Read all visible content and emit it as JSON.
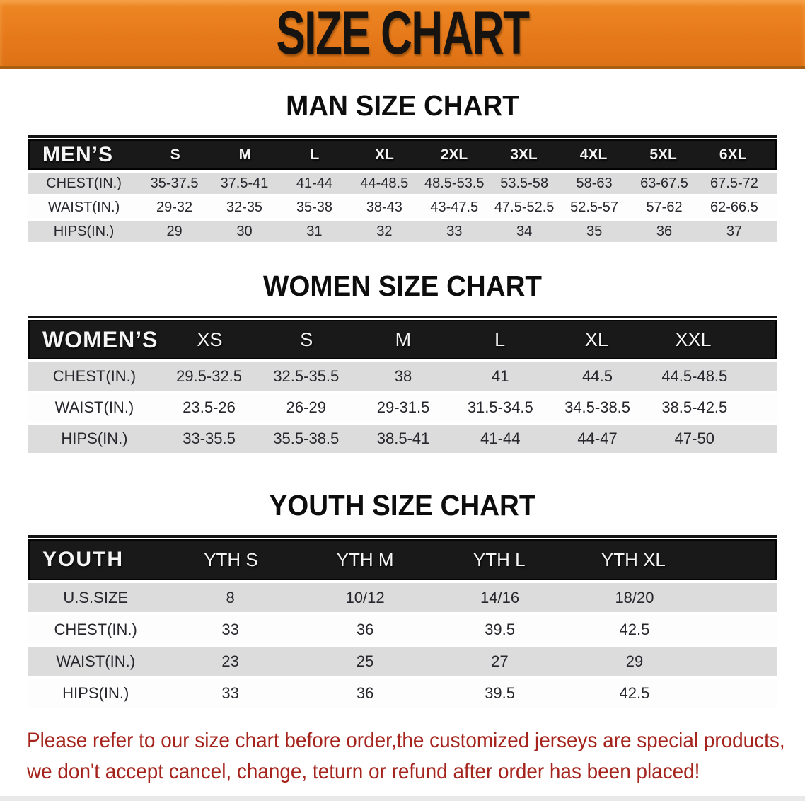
{
  "banner": {
    "title": "SIZE CHART",
    "background": "#e67a1b",
    "text_color": "#171310"
  },
  "sections": [
    {
      "heading": "MAN SIZE CHART",
      "table": {
        "header": {
          "label": "MEN’S",
          "sizes": [
            "S",
            "M",
            "L",
            "XL",
            "2XL",
            "3XL",
            "4XL",
            "5XL",
            "6XL"
          ]
        },
        "rows": [
          {
            "label": "CHEST(IN.)",
            "values": [
              "35-37.5",
              "37.5-41",
              "41-44",
              "44-48.5",
              "48.5-53.5",
              "53.5-58",
              "58-63",
              "63-67.5",
              "67.5-72"
            ]
          },
          {
            "label": "WAIST(IN.)",
            "values": [
              "29-32",
              "32-35",
              "35-38",
              "38-43",
              "43-47.5",
              "47.5-52.5",
              "52.5-57",
              "57-62",
              "62-66.5"
            ]
          },
          {
            "label": "HIPS(IN.)",
            "values": [
              "29",
              "30",
              "31",
              "32",
              "33",
              "34",
              "35",
              "36",
              "37"
            ]
          }
        ]
      }
    },
    {
      "heading": "WOMEN SIZE CHART",
      "table": {
        "header": {
          "label": "WOMEN’S",
          "sizes": [
            "XS",
            "S",
            "M",
            "L",
            "XL",
            "XXL"
          ]
        },
        "rows": [
          {
            "label": "CHEST(IN.)",
            "values": [
              "29.5-32.5",
              "32.5-35.5",
              "38",
              "41",
              "44.5",
              "44.5-48.5"
            ]
          },
          {
            "label": "WAIST(IN.)",
            "values": [
              "23.5-26",
              "26-29",
              "29-31.5",
              "31.5-34.5",
              "34.5-38.5",
              "38.5-42.5"
            ]
          },
          {
            "label": "HIPS(IN.)",
            "values": [
              "33-35.5",
              "35.5-38.5",
              "38.5-41",
              "41-44",
              "44-47",
              "47-50"
            ]
          }
        ]
      }
    },
    {
      "heading": "YOUTH SIZE CHART",
      "table": {
        "header": {
          "label": "YOUTH",
          "sizes": [
            "YTH S",
            "YTH M",
            "YTH L",
            "YTH XL"
          ]
        },
        "rows": [
          {
            "label": "U.S.SIZE",
            "values": [
              "8",
              "10/12",
              "14/16",
              "18/20"
            ]
          },
          {
            "label": "CHEST(IN.)",
            "values": [
              "33",
              "36",
              "39.5",
              "42.5"
            ]
          },
          {
            "label": "WAIST(IN.)",
            "values": [
              "23",
              "25",
              "27",
              "29"
            ]
          },
          {
            "label": "HIPS(IN.)",
            "values": [
              "33",
              "36",
              "39.5",
              "42.5"
            ]
          }
        ]
      }
    }
  ],
  "disclaimer": {
    "lines": [
      "Please refer to our size chart before order,the customized jerseys are special products,",
      "we don't accept cancel, change, teturn or refund after order has been placed!"
    ],
    "color": "#a5251e"
  },
  "colors": {
    "banner_orange": "#e67a1b",
    "table_header_bg": "#191919",
    "stripe_gray": "#dcdcdc",
    "stripe_white": "#fdfdfd",
    "body_text": "#26262c",
    "disclaimer_red": "#a5251e"
  }
}
